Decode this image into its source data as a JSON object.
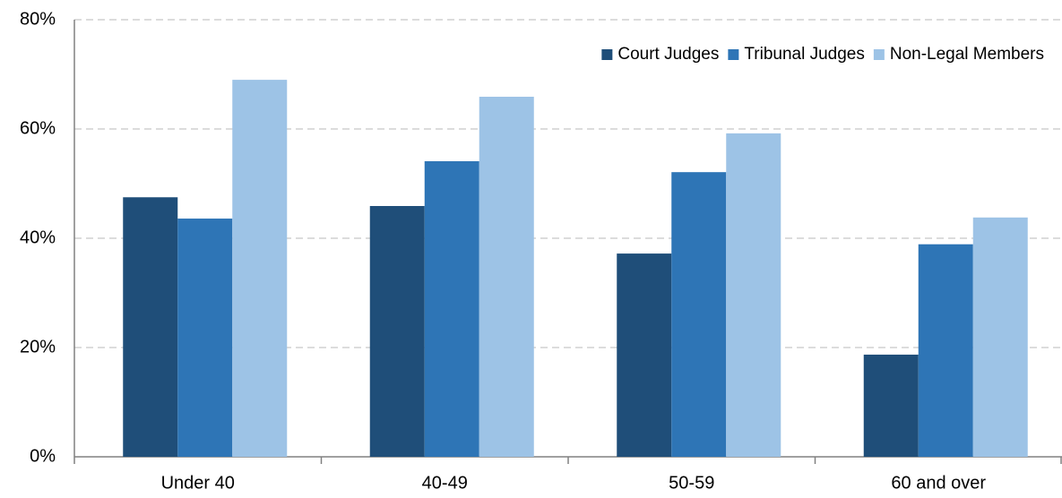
{
  "chart_data": {
    "type": "bar",
    "categories": [
      "Under 40",
      "40-49",
      "50-59",
      "60 and over"
    ],
    "series": [
      {
        "name": "Court Judges",
        "color": "#1f4e79",
        "values": [
          47.5,
          45.9,
          37.2,
          18.7
        ]
      },
      {
        "name": "Tribunal Judges",
        "color": "#2e75b6",
        "values": [
          43.6,
          54.1,
          52.1,
          38.9
        ]
      },
      {
        "name": "Non-Legal Members",
        "color": "#9dc3e6",
        "values": [
          69.0,
          65.9,
          59.2,
          43.8
        ]
      }
    ],
    "ylim": [
      0,
      80
    ],
    "yticks": [
      {
        "value": 0,
        "label": "0%"
      },
      {
        "value": 20,
        "label": "20%"
      },
      {
        "value": 40,
        "label": "40%"
      },
      {
        "value": 60,
        "label": "60%"
      },
      {
        "value": 80,
        "label": "80%"
      }
    ],
    "grid": true,
    "legend": "top-right"
  }
}
